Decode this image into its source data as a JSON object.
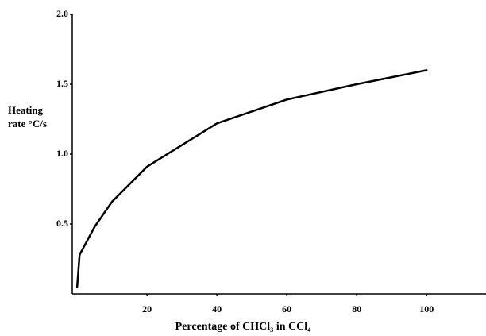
{
  "chart_data": {
    "type": "line",
    "x_label": "Percentage of CHCl₃ in CCl₄",
    "y_label": [
      "Heating",
      "rate °C/s"
    ],
    "x": [
      0,
      0.7,
      2,
      5,
      10,
      20,
      40,
      60,
      80,
      100
    ],
    "series": [
      {
        "color": "#000000",
        "values": [
          0.05,
          0.28,
          0.34,
          0.48,
          0.66,
          0.91,
          1.22,
          1.39,
          1.5,
          1.6
        ]
      }
    ],
    "xlim": [
      -1.4,
      117
    ],
    "ylim": [
      0,
      2.0
    ],
    "xticks": [
      20,
      40,
      60,
      80,
      100
    ],
    "yticks": [
      0.5,
      {
        "value": 1.0,
        "label": "1.0"
      },
      1.5,
      {
        "value": 2.0,
        "label": "2.0"
      }
    ]
  }
}
